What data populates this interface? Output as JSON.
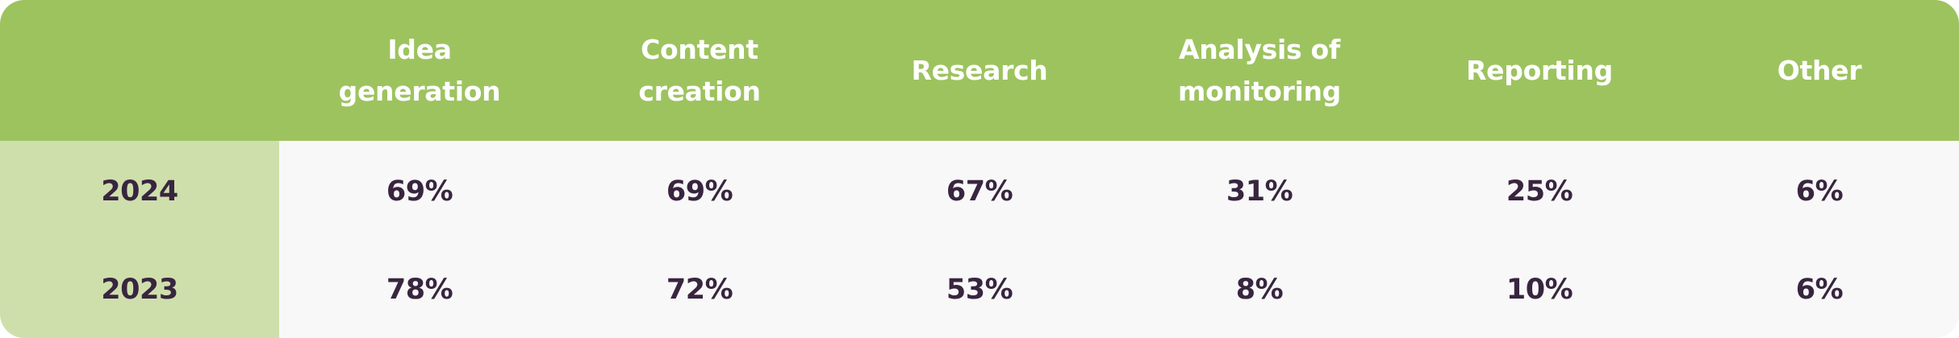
{
  "chart_data": {
    "type": "table",
    "columns": [
      "",
      "Idea generation",
      "Content creation",
      "Research",
      "Analysis of monitoring",
      "Reporting",
      "Other"
    ],
    "header_display": [
      "",
      "Idea generation",
      "Content\ncreation",
      "Research",
      "Analysis of\nmonitoring",
      "Reporting",
      "Other"
    ],
    "rows": [
      {
        "label": "2024",
        "values": [
          "69%",
          "69%",
          "67%",
          "31%",
          "25%",
          "6%"
        ]
      },
      {
        "label": "2023",
        "values": [
          "78%",
          "72%",
          "53%",
          "8%",
          "10%",
          "6%"
        ]
      }
    ],
    "colors": {
      "header_bg": "#9dc35f",
      "year_col_bg": "#cedfac",
      "body_bg": "#f8f8f8",
      "header_text": "#ffffff",
      "body_text": "#38253f"
    }
  }
}
